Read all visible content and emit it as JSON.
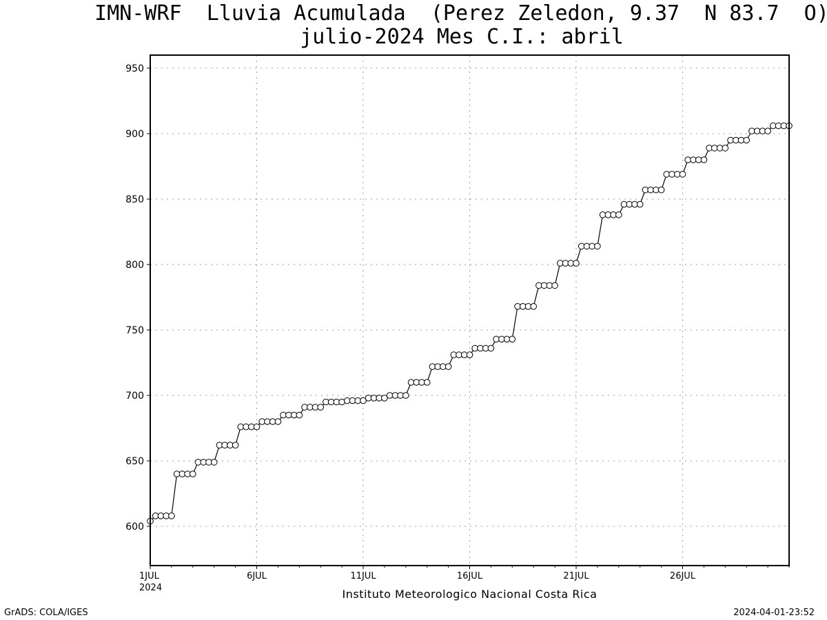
{
  "header": {
    "title_line1": "IMN-WRF  Lluvia Acumulada  (Perez Zeledon, 9.37  N 83.7  O)",
    "title_line2": "julio-2024 Mes C.I.: abril"
  },
  "footer": {
    "left": "GrADS: COLA/IGES",
    "right": "2024-04-01-23:52",
    "credit": "Instituto Meteorologico Nacional Costa Rica"
  },
  "chart_data": {
    "type": "line",
    "title": "IMN-WRF  Lluvia Acumulada  (Perez Zeledon, 9.37  N 83.7  O)",
    "subtitle": "julio-2024 Mes C.I.: abril",
    "xlabel": "",
    "ylabel": "",
    "xlim_days": [
      1,
      31
    ],
    "ylim": [
      570,
      960
    ],
    "yticks": [
      600,
      650,
      700,
      750,
      800,
      850,
      900,
      950
    ],
    "xticks": [
      {
        "day": 1,
        "label": "1JUL",
        "sublabel": "2024"
      },
      {
        "day": 6,
        "label": "6JUL",
        "sublabel": ""
      },
      {
        "day": 11,
        "label": "11JUL",
        "sublabel": ""
      },
      {
        "day": 16,
        "label": "16JUL",
        "sublabel": ""
      },
      {
        "day": 21,
        "label": "21JUL",
        "sublabel": ""
      },
      {
        "day": 26,
        "label": "26JUL",
        "sublabel": ""
      }
    ],
    "grid": true,
    "marker": "open-circle",
    "steps_per_day": 4,
    "values": [
      604,
      608,
      608,
      608,
      608,
      640,
      640,
      640,
      640,
      649,
      649,
      649,
      649,
      662,
      662,
      662,
      662,
      676,
      676,
      676,
      676,
      680,
      680,
      680,
      680,
      685,
      685,
      685,
      685,
      691,
      691,
      691,
      691,
      695,
      695,
      695,
      695,
      696,
      696,
      696,
      696,
      698,
      698,
      698,
      698,
      700,
      700,
      700,
      700,
      710,
      710,
      710,
      710,
      722,
      722,
      722,
      722,
      731,
      731,
      731,
      731,
      736,
      736,
      736,
      736,
      743,
      743,
      743,
      743,
      768,
      768,
      768,
      768,
      784,
      784,
      784,
      784,
      801,
      801,
      801,
      801,
      814,
      814,
      814,
      814,
      838,
      838,
      838,
      838,
      846,
      846,
      846,
      846,
      857,
      857,
      857,
      857,
      869,
      869,
      869,
      869,
      880,
      880,
      880,
      880,
      889,
      889,
      889,
      889,
      895,
      895,
      895,
      895,
      902,
      902,
      902,
      902,
      906,
      906,
      906,
      906
    ]
  }
}
